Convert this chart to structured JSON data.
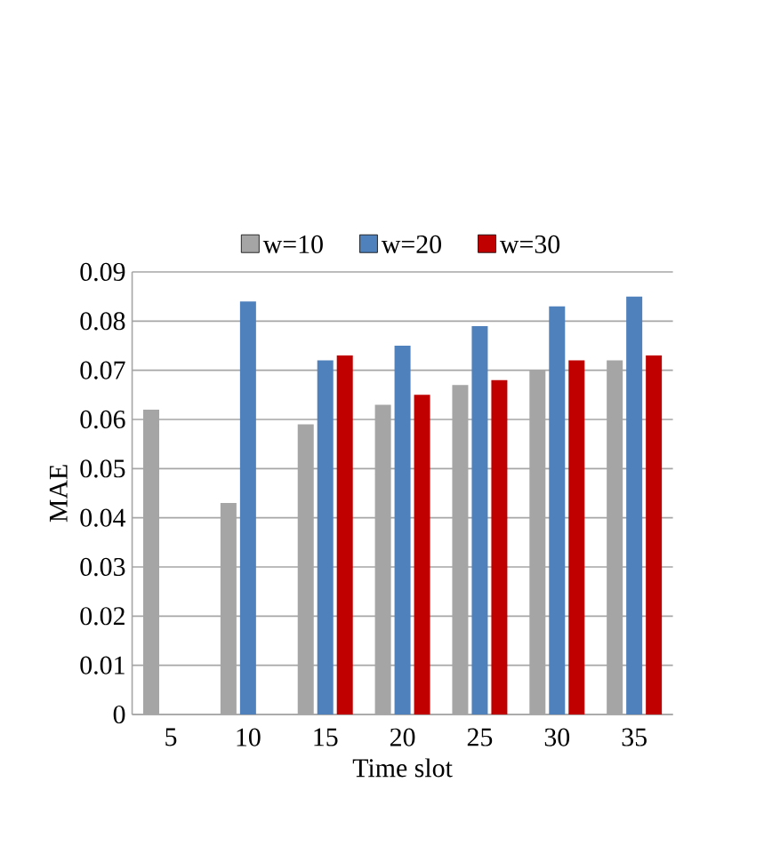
{
  "chart_data": {
    "type": "bar",
    "xlabel": "Time slot",
    "ylabel": "MAE",
    "categories": [
      "5",
      "10",
      "15",
      "20",
      "25",
      "30",
      "35"
    ],
    "series": [
      {
        "name": "w=10",
        "color": "#a5a5a5",
        "values": [
          0.062,
          0.043,
          0.059,
          0.063,
          0.067,
          0.07,
          0.072
        ]
      },
      {
        "name": "w=20",
        "color": "#4f81bd",
        "values": [
          null,
          0.084,
          0.072,
          0.075,
          0.079,
          0.083,
          0.085
        ]
      },
      {
        "name": "w=30",
        "color": "#c00000",
        "values": [
          null,
          null,
          0.073,
          0.065,
          0.068,
          0.072,
          0.073
        ]
      }
    ],
    "ylim": [
      0,
      0.09
    ],
    "yticks": [
      0,
      0.01,
      0.02,
      0.03,
      0.04,
      0.05,
      0.06,
      0.07,
      0.08,
      0.09
    ],
    "grid": "y",
    "legend": "top"
  }
}
